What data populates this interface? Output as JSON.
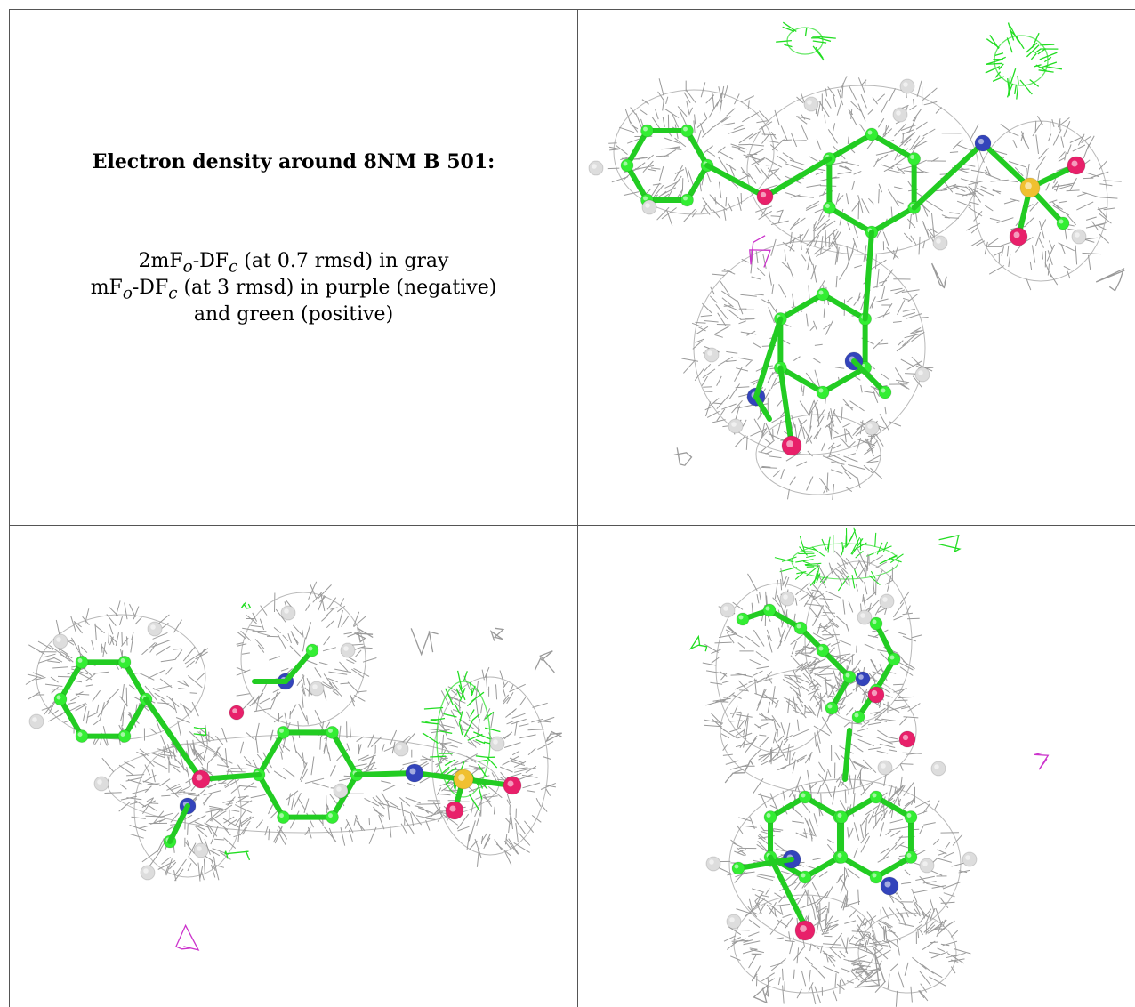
{
  "caption": {
    "title": "Electron density around 8NM B 501:",
    "line1_prefix": "2mF",
    "line1_sub1": "o",
    "line1_mid": "-DF",
    "line1_sub2": "c",
    "line1_suffix": " (at 0.7 rmsd) in gray",
    "line2_prefix": "mF",
    "line2_sub1": "o",
    "line2_mid": "-DF",
    "line2_sub2": "c",
    "line2_suffix": " (at 3 rmsd) in purple (negative)",
    "line3": "and green (positive)"
  },
  "colors": {
    "mesh_gray": "#9a9a9a",
    "positive_green": "#22dd22",
    "negative_purple": "#cc33cc",
    "carbon": "#33ee33",
    "nitrogen": "#3344bb",
    "oxygen": "#e8206a",
    "sulfur": "#f0c030",
    "hydrogen": "#dddddd"
  },
  "views": [
    {
      "name": "view-top-right"
    },
    {
      "name": "view-bottom-left"
    },
    {
      "name": "view-bottom-right"
    }
  ]
}
